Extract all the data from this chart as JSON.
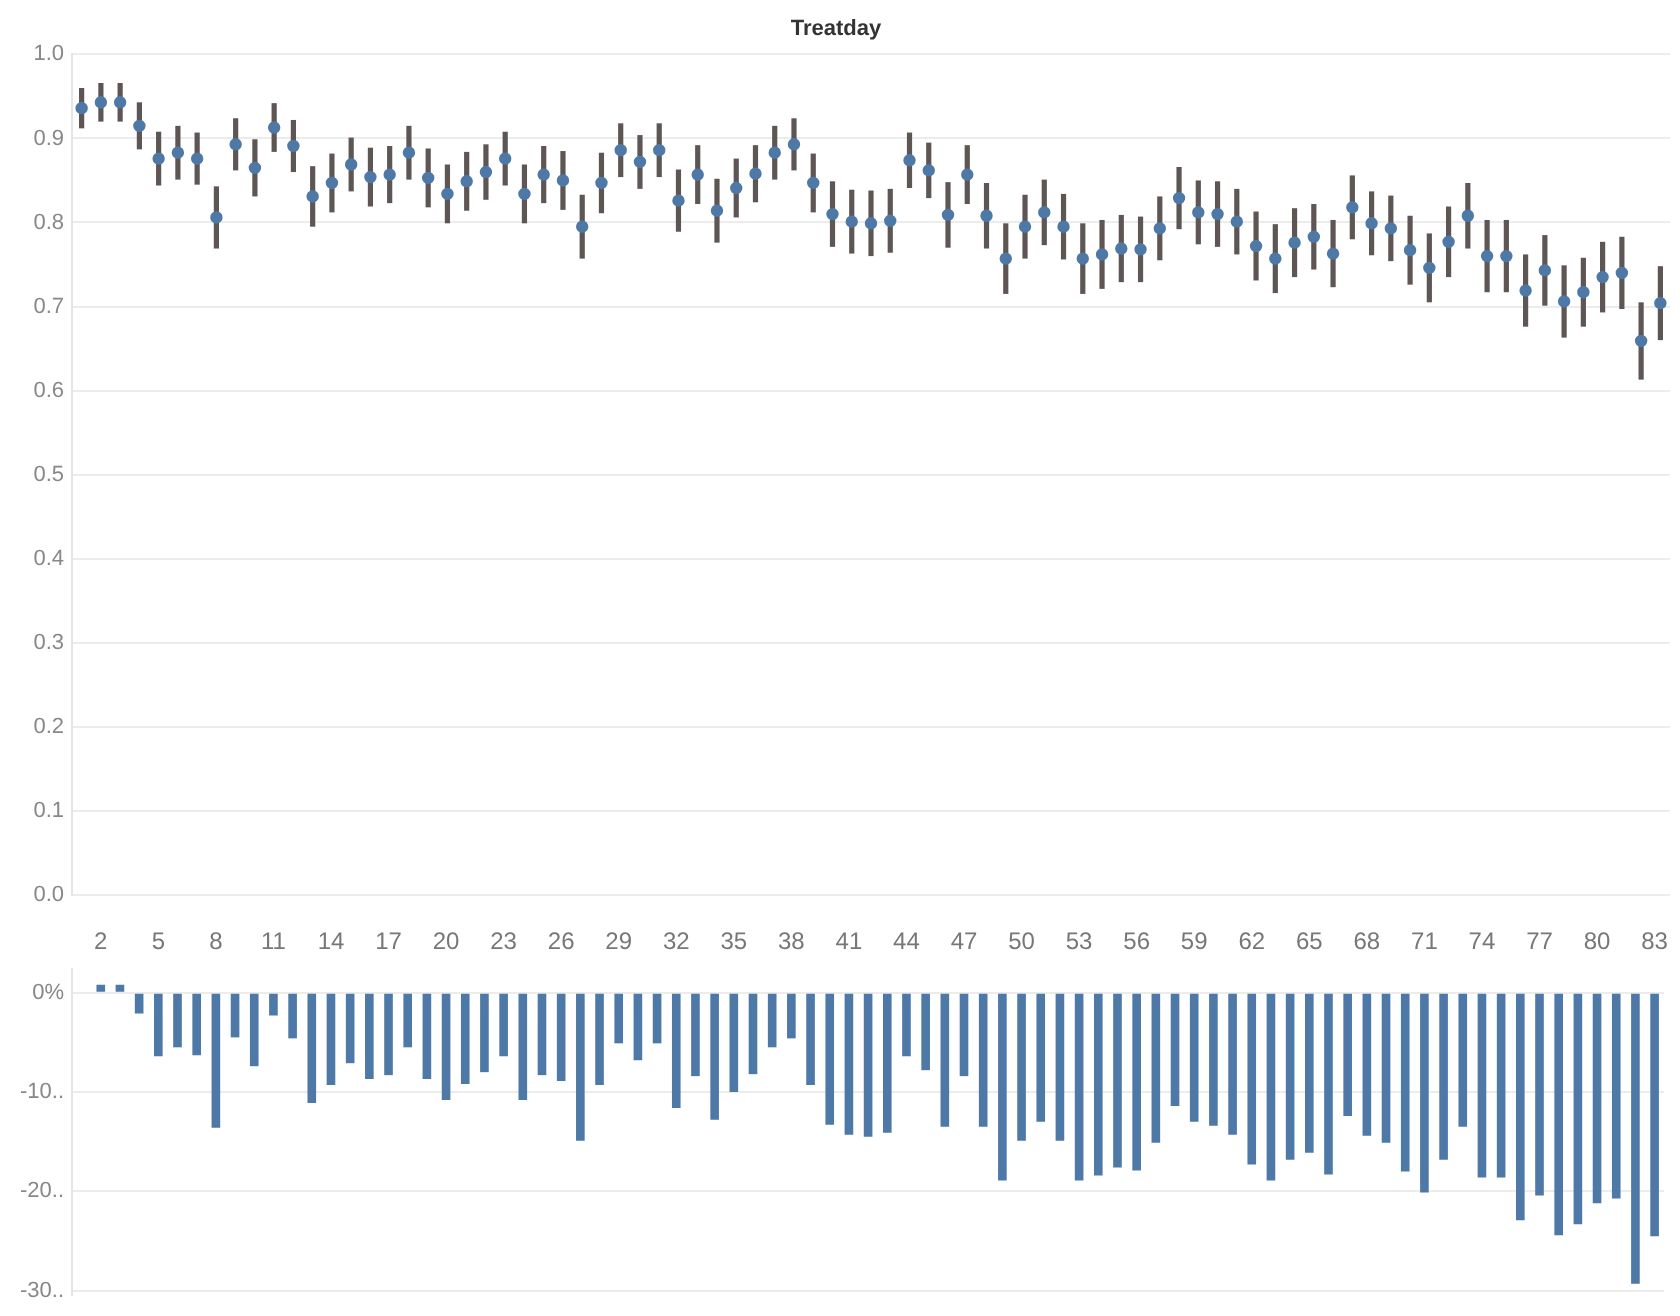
{
  "chart_data": [
    {
      "type": "scatter",
      "title": "Treatday",
      "categories": [
        null,
        "2",
        null,
        null,
        "5",
        null,
        null,
        "8",
        null,
        null,
        "11",
        null,
        null,
        "14",
        null,
        null,
        "17",
        null,
        null,
        "20",
        null,
        null,
        "23",
        null,
        null,
        "26",
        null,
        null,
        "29",
        null,
        null,
        "32",
        null,
        null,
        "35",
        null,
        null,
        "38",
        null,
        null,
        "41",
        null,
        null,
        "44",
        null,
        null,
        "47",
        null,
        null,
        "50",
        null,
        null,
        "53",
        null,
        null,
        "56",
        null,
        null,
        "59",
        null,
        null,
        "62",
        null,
        null,
        "65",
        null,
        null,
        "68",
        null,
        null,
        "71",
        null,
        null,
        "74",
        null,
        null,
        "77",
        null,
        null,
        "80",
        null,
        null,
        "83"
      ],
      "values": [
        0.936,
        0.943,
        0.943,
        0.915,
        0.876,
        0.883,
        0.876,
        0.806,
        0.893,
        0.865,
        0.913,
        0.891,
        0.831,
        0.847,
        0.869,
        0.854,
        0.857,
        0.883,
        0.853,
        0.834,
        0.849,
        0.86,
        0.876,
        0.834,
        0.857,
        0.85,
        0.795,
        0.847,
        0.886,
        0.872,
        0.886,
        0.826,
        0.857,
        0.814,
        0.841,
        0.858,
        0.883,
        0.893,
        0.847,
        0.81,
        0.801,
        0.799,
        0.802,
        0.874,
        0.862,
        0.809,
        0.857,
        0.808,
        0.757,
        0.795,
        0.812,
        0.795,
        0.757,
        0.762,
        0.769,
        0.768,
        0.793,
        0.829,
        0.812,
        0.81,
        0.801,
        0.772,
        0.757,
        0.776,
        0.783,
        0.763,
        0.818,
        0.799,
        0.793,
        0.767,
        0.746,
        0.777,
        0.808,
        0.76,
        0.76,
        0.719,
        0.743,
        0.706,
        0.717,
        0.735,
        0.74,
        0.659,
        0.704
      ],
      "errors": [
        0.024,
        0.023,
        0.023,
        0.028,
        0.032,
        0.032,
        0.031,
        0.037,
        0.031,
        0.034,
        0.029,
        0.031,
        0.036,
        0.035,
        0.032,
        0.035,
        0.034,
        0.032,
        0.035,
        0.035,
        0.035,
        0.033,
        0.032,
        0.035,
        0.034,
        0.035,
        0.038,
        0.036,
        0.032,
        0.032,
        0.032,
        0.037,
        0.035,
        0.038,
        0.035,
        0.034,
        0.032,
        0.031,
        0.035,
        0.039,
        0.038,
        0.039,
        0.038,
        0.033,
        0.033,
        0.039,
        0.035,
        0.039,
        0.042,
        0.038,
        0.039,
        0.039,
        0.042,
        0.041,
        0.04,
        0.039,
        0.038,
        0.037,
        0.038,
        0.039,
        0.039,
        0.041,
        0.041,
        0.041,
        0.039,
        0.04,
        0.038,
        0.038,
        0.039,
        0.041,
        0.041,
        0.042,
        0.039,
        0.043,
        0.043,
        0.043,
        0.042,
        0.043,
        0.041,
        0.042,
        0.043,
        0.046,
        0.044
      ],
      "color": "#4e79a7",
      "marker": "circle",
      "ylim": [
        0,
        1
      ],
      "yticks": [
        {
          "value": 0,
          "label": "0.0"
        },
        0.1,
        0.2,
        0.3,
        0.4,
        0.5,
        0.6,
        0.7,
        0.8,
        0.9,
        {
          "value": 1,
          "label": "1.0"
        }
      ],
      "grid": "y",
      "legend": false,
      "tick_labels": "y"
    },
    {
      "type": "bar",
      "categories": [
        null,
        "2",
        null,
        null,
        "5",
        null,
        null,
        "8",
        null,
        null,
        "11",
        null,
        null,
        "14",
        null,
        null,
        "17",
        null,
        null,
        "20",
        null,
        null,
        "23",
        null,
        null,
        "26",
        null,
        null,
        "29",
        null,
        null,
        "32",
        null,
        null,
        "35",
        null,
        null,
        "38",
        null,
        null,
        "41",
        null,
        null,
        "44",
        null,
        null,
        "47",
        null,
        null,
        "50",
        null,
        null,
        "53",
        null,
        null,
        "56",
        null,
        null,
        "59",
        null,
        null,
        "62",
        null,
        null,
        "65",
        null,
        null,
        "68",
        null,
        null,
        "71",
        null,
        null,
        "74",
        null,
        null,
        "77",
        null,
        null,
        "80",
        null,
        null,
        "83"
      ],
      "values": [
        0,
        0.8,
        0.8,
        -2.1,
        -6.4,
        -5.5,
        -6.3,
        -13.6,
        -4.5,
        -7.4,
        -2.3,
        -4.6,
        -11.1,
        -9.3,
        -7.1,
        -8.7,
        -8.3,
        -5.5,
        -8.7,
        -10.8,
        -9.2,
        -8,
        -6.4,
        -10.8,
        -8.3,
        -8.9,
        -14.9,
        -9.3,
        -5.1,
        -6.8,
        -5.1,
        -11.6,
        -8.4,
        -12.8,
        -10,
        -8.2,
        -5.5,
        -4.6,
        -9.3,
        -13.3,
        -14.3,
        -14.5,
        -14.1,
        -6.4,
        -7.8,
        -13.5,
        -8.4,
        -13.5,
        -18.9,
        -14.9,
        -13,
        -14.9,
        -18.9,
        -18.4,
        -17.6,
        -17.9,
        -15.1,
        -11.4,
        -13,
        -13.4,
        -14.3,
        -17.3,
        -18.9,
        -16.8,
        -16.1,
        -18.3,
        -12.4,
        -14.4,
        -15.1,
        -18,
        -20.1,
        -16.8,
        -13.5,
        -18.6,
        -18.6,
        -22.9,
        -20.4,
        -24.4,
        -23.3,
        -21.2,
        -20.7,
        -29.3,
        -24.5
      ],
      "color": "#4e79a7",
      "ylim": [
        -30.4,
        2.4
      ],
      "yticks": [
        {
          "value": 0,
          "label": "0%"
        },
        {
          "value": -10,
          "label": "-10.."
        },
        {
          "value": -20,
          "label": "-20.."
        },
        {
          "value": -30,
          "label": "-30.."
        }
      ],
      "grid": "y",
      "legend": false
    }
  ]
}
